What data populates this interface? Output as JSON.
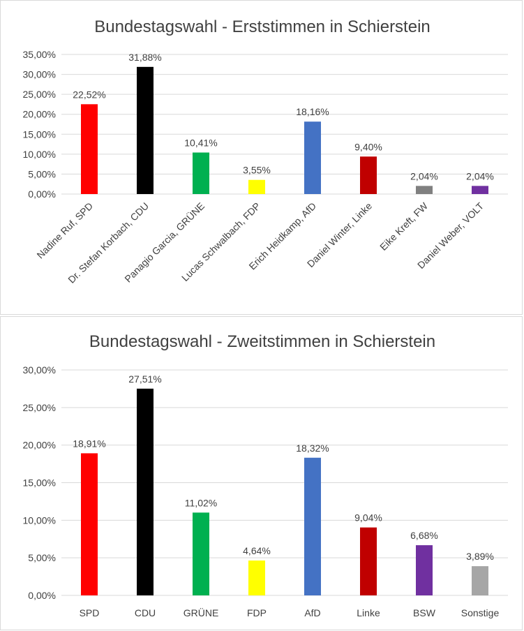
{
  "colors": {
    "background": "#ffffff",
    "grid": "#d9d9d9",
    "text": "#404040"
  },
  "chart_data": [
    {
      "type": "bar",
      "title": "Bundestagswahl - Erststimmen in Schierstein",
      "categories": [
        "Nadine Ruf, SPD",
        "Dr. Stefan Korbach, CDU",
        "Panagio Garcia, GRÜNE",
        "Lucas Schwalbach, FDP",
        "Erich Heidkamp, AfD",
        "Daniel Winter, Linke",
        "Eike Kreft, FW",
        "Daniel Weber, VOLT"
      ],
      "values": [
        22.52,
        31.88,
        10.41,
        3.55,
        18.16,
        9.4,
        2.04,
        2.04
      ],
      "data_labels": [
        "22,52%",
        "31,88%",
        "10,41%",
        "3,55%",
        "18,16%",
        "9,40%",
        "2,04%",
        "2,04%"
      ],
      "bar_colors": [
        "#ff0000",
        "#000000",
        "#00b050",
        "#ffff00",
        "#4472c4",
        "#c00000",
        "#808080",
        "#7030a0"
      ],
      "ylim": [
        0,
        35
      ],
      "yticks": [
        0,
        5,
        10,
        15,
        20,
        25,
        30,
        35
      ],
      "ytick_labels": [
        "0,00%",
        "5,00%",
        "10,00%",
        "15,00%",
        "20,00%",
        "25,00%",
        "30,00%",
        "35,00%"
      ],
      "grid": true,
      "legend": "none"
    },
    {
      "type": "bar",
      "title": "Bundestagswahl - Zweitstimmen in Schierstein",
      "categories": [
        "SPD",
        "CDU",
        "GRÜNE",
        "FDP",
        "AfD",
        "Linke",
        "BSW",
        "Sonstige"
      ],
      "values": [
        18.91,
        27.51,
        11.02,
        4.64,
        18.32,
        9.04,
        6.68,
        3.89
      ],
      "data_labels": [
        "18,91%",
        "27,51%",
        "11,02%",
        "4,64%",
        "18,32%",
        "9,04%",
        "6,68%",
        "3,89%"
      ],
      "bar_colors": [
        "#ff0000",
        "#000000",
        "#00b050",
        "#ffff00",
        "#4472c4",
        "#c00000",
        "#7030a0",
        "#a6a6a6"
      ],
      "ylim": [
        0,
        30
      ],
      "yticks": [
        0,
        5,
        10,
        15,
        20,
        25,
        30
      ],
      "ytick_labels": [
        "0,00%",
        "5,00%",
        "10,00%",
        "15,00%",
        "20,00%",
        "25,00%",
        "30,00%"
      ],
      "grid": true,
      "legend": "none"
    }
  ]
}
